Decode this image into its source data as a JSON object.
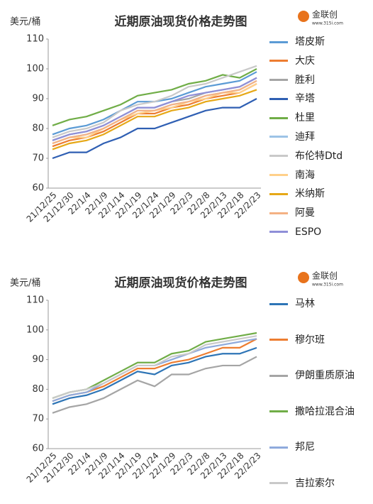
{
  "chart_data": [
    {
      "type": "line",
      "title": "近期原油现货价格走势图",
      "y_unit": "美元/桶",
      "logo_text": "金联创",
      "logo_url": "www.315i.com",
      "categories": [
        "21/12/25",
        "21/12/30",
        "22/1/4",
        "22/1/9",
        "22/1/14",
        "22/1/19",
        "22/1/24",
        "22/1/29",
        "22/2/3",
        "22/2/8",
        "22/2/13",
        "22/2/18",
        "22/2/23"
      ],
      "ylim": [
        60,
        110
      ],
      "yticks": [
        60,
        70,
        80,
        90,
        100,
        110
      ],
      "grid": false,
      "series": [
        {
          "name": "塔皮斯",
          "color": "#5b9bd5",
          "values": [
            78,
            80,
            81,
            83,
            86,
            89,
            89,
            90,
            92,
            94,
            95,
            96,
            99
          ]
        },
        {
          "name": "大庆",
          "color": "#ed7d31",
          "values": [
            74,
            76,
            77,
            79,
            82,
            85,
            85,
            87,
            88,
            90,
            91,
            92,
            95
          ]
        },
        {
          "name": "胜利",
          "color": "#a5a5a5",
          "values": [
            76,
            78,
            79,
            81,
            84,
            87,
            87,
            89,
            90,
            92,
            93,
            94,
            97
          ]
        },
        {
          "name": "辛塔",
          "color": "#2f5fb3",
          "values": [
            70,
            72,
            72,
            75,
            77,
            80,
            80,
            82,
            84,
            86,
            87,
            87,
            90
          ]
        },
        {
          "name": "杜里",
          "color": "#70ad47",
          "values": [
            81,
            83,
            84,
            86,
            88,
            91,
            92,
            93,
            95,
            96,
            98,
            97,
            100
          ]
        },
        {
          "name": "迪拜",
          "color": "#9dc3e6",
          "values": [
            75,
            77,
            78,
            80,
            83,
            86,
            86,
            88,
            89,
            91,
            92,
            93,
            96
          ]
        },
        {
          "name": "布伦特Dtd",
          "color": "#c9c9c9",
          "values": [
            77,
            79,
            80,
            82,
            86,
            88,
            89,
            91,
            94,
            95,
            97,
            99,
            101
          ]
        },
        {
          "name": "南海",
          "color": "#ffd08a",
          "values": [
            75,
            77,
            77,
            80,
            83,
            85,
            86,
            87,
            89,
            90,
            92,
            92,
            95
          ]
        },
        {
          "name": "米纳斯",
          "color": "#e6a817",
          "values": [
            73,
            75,
            76,
            78,
            81,
            84,
            84,
            86,
            87,
            89,
            90,
            91,
            93
          ]
        },
        {
          "name": "阿曼",
          "color": "#f4b183",
          "values": [
            75,
            77,
            78,
            80,
            83,
            86,
            86,
            88,
            89,
            91,
            92,
            93,
            96
          ]
        },
        {
          "name": "ESPO",
          "color": "#8f8fd8",
          "values": [
            76,
            78,
            79,
            81,
            84,
            87,
            87,
            89,
            91,
            92,
            93,
            94,
            97
          ]
        }
      ]
    },
    {
      "type": "line",
      "title": "近期原油现货价格走势图",
      "y_unit": "美元/桶",
      "logo_text": "金联创",
      "logo_url": "www.315i.com",
      "categories": [
        "21/12/25",
        "21/12/30",
        "22/1/4",
        "22/1/9",
        "22/1/14",
        "22/1/19",
        "22/1/24",
        "22/1/29",
        "22/2/3",
        "22/2/8",
        "22/2/13",
        "22/2/18",
        "22/2/23"
      ],
      "ylim": [
        60,
        110
      ],
      "yticks": [
        60,
        70,
        80,
        90,
        100,
        110
      ],
      "grid": false,
      "series": [
        {
          "name": "马林",
          "color": "#2e75b6",
          "values": [
            75,
            77,
            78,
            80,
            83,
            86,
            85,
            88,
            89,
            91,
            92,
            92,
            94
          ]
        },
        {
          "name": "穆尔班",
          "color": "#ed7d31",
          "values": [
            76,
            78,
            79,
            81,
            84,
            87,
            87,
            89,
            90,
            92,
            94,
            94,
            97
          ]
        },
        {
          "name": "伊朗重质原油",
          "color": "#a5a5a5",
          "values": [
            72,
            74,
            75,
            77,
            80,
            83,
            81,
            85,
            85,
            87,
            88,
            88,
            91
          ]
        },
        {
          "name": "撒哈拉混合油",
          "color": "#70ad47",
          "values": [
            77,
            79,
            80,
            83,
            86,
            89,
            89,
            92,
            93,
            96,
            97,
            98,
            99
          ]
        },
        {
          "name": "邦尼",
          "color": "#8faadc",
          "values": [
            76,
            78,
            79,
            82,
            85,
            88,
            88,
            90,
            92,
            94,
            95,
            96,
            97
          ]
        },
        {
          "name": "吉拉索尔",
          "color": "#c9c9c9",
          "values": [
            77,
            79,
            80,
            82,
            85,
            88,
            88,
            91,
            92,
            95,
            96,
            97,
            98
          ]
        }
      ]
    }
  ]
}
